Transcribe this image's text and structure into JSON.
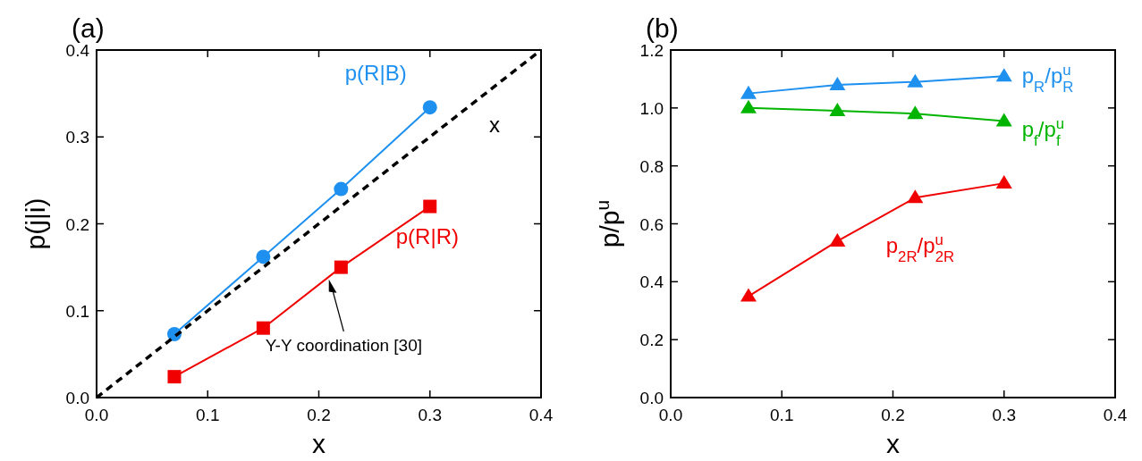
{
  "chart_data": [
    {
      "type": "line",
      "title": "(a)",
      "xlabel": "x",
      "ylabel": "p(j|i)",
      "xlim": [
        0,
        0.4
      ],
      "ylim": [
        0,
        0.4
      ],
      "xticks": [
        {
          "value": 0,
          "label": "0.0"
        },
        {
          "value": 0.1,
          "label": "0.1"
        },
        {
          "value": 0.2,
          "label": "0.2"
        },
        {
          "value": 0.3,
          "label": "0.3"
        },
        {
          "value": 0.4,
          "label": "0.4"
        }
      ],
      "yticks": [
        {
          "value": 0,
          "label": "0.0"
        },
        {
          "value": 0.1,
          "label": "0.1"
        },
        {
          "value": 0.2,
          "label": "0.2"
        },
        {
          "value": 0.3,
          "label": "0.3"
        },
        {
          "value": 0.4,
          "label": "0.4"
        }
      ],
      "grid": false,
      "series": [
        {
          "name": "p(R|B)",
          "color": "#1e90f0",
          "x": [
            0.07,
            0.15,
            0.22,
            0.3
          ],
          "values": [
            0.073,
            0.162,
            0.24,
            0.334
          ],
          "marker": "circle"
        },
        {
          "name": "p(R|R)",
          "color": "#f00000",
          "x": [
            0.07,
            0.15,
            0.22,
            0.3
          ],
          "values": [
            0.024,
            0.08,
            0.15,
            0.22
          ],
          "marker": "square"
        },
        {
          "name": "x",
          "color": "#000000",
          "x": [
            0,
            0.4
          ],
          "values": [
            0,
            0.4
          ],
          "marker": "none",
          "line_style": "dashed"
        }
      ],
      "annotations": [
        "Y-Y coordination [30]"
      ]
    },
    {
      "type": "line",
      "title": "(b)",
      "xlabel": "x",
      "ylabel": "p/p$^{u}$",
      "xlim": [
        0,
        0.4
      ],
      "ylim": [
        0,
        1.2
      ],
      "xticks": [
        {
          "value": 0,
          "label": "0.0"
        },
        {
          "value": 0.1,
          "label": "0.1"
        },
        {
          "value": 0.2,
          "label": "0.2"
        },
        {
          "value": 0.3,
          "label": "0.3"
        },
        {
          "value": 0.4,
          "label": "0.4"
        }
      ],
      "yticks": [
        {
          "value": 0,
          "label": "0.0"
        },
        {
          "value": 0.2,
          "label": "0.2"
        },
        {
          "value": 0.4,
          "label": "0.4"
        },
        {
          "value": 0.6,
          "label": "0.6"
        },
        {
          "value": 0.8,
          "label": "0.8"
        },
        {
          "value": 1,
          "label": "1.0"
        },
        {
          "value": 1.2,
          "label": "1.2"
        }
      ],
      "grid": false,
      "series": [
        {
          "name": "p$_{R}$/p$^{u}$$_{R}$",
          "color": "#1e90f0",
          "x": [
            0.07,
            0.15,
            0.22,
            0.3
          ],
          "values": [
            1.05,
            1.08,
            1.09,
            1.11
          ],
          "marker": "triangle"
        },
        {
          "name": "p$_{f}$/p$^{u}$$_{f}$",
          "color": "#00b400",
          "x": [
            0.07,
            0.15,
            0.22,
            0.3
          ],
          "values": [
            1.0,
            0.99,
            0.98,
            0.955
          ],
          "marker": "triangle"
        },
        {
          "name": "p$_{2R}$/p$^{u}$$_{2R}$",
          "color": "#f00000",
          "x": [
            0.07,
            0.15,
            0.22,
            0.3
          ],
          "values": [
            0.35,
            0.54,
            0.69,
            0.74
          ],
          "marker": "triangle"
        }
      ]
    }
  ]
}
